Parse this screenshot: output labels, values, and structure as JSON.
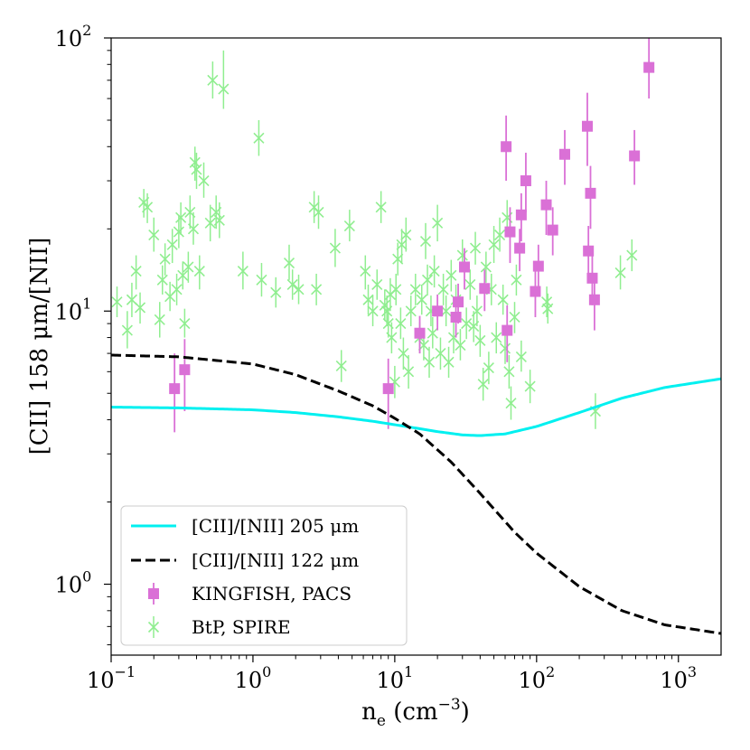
{
  "chart_data": {
    "type": "scatter",
    "xscale": "log",
    "yscale": "log",
    "xlim": [
      0.1,
      2000
    ],
    "ylim": [
      0.55,
      100
    ],
    "xlabel": {
      "base": "n",
      "sub": "e",
      "unit_open": " (cm",
      "sup": "−3",
      "unit_close": ")"
    },
    "ylabel": "[CII] 158 μm/[NII]",
    "xticks": [
      {
        "value": 0.1,
        "base": "10",
        "exp": "−1"
      },
      {
        "value": 1,
        "base": "10",
        "exp": "0"
      },
      {
        "value": 10,
        "base": "10",
        "exp": "1"
      },
      {
        "value": 100,
        "base": "10",
        "exp": "2"
      },
      {
        "value": 1000,
        "base": "10",
        "exp": "3"
      }
    ],
    "yticks": [
      {
        "value": 1,
        "base": "10",
        "exp": "0"
      },
      {
        "value": 10,
        "base": "10",
        "exp": "1"
      },
      {
        "value": 100,
        "base": "10",
        "exp": "2"
      }
    ],
    "legend_position": "lower-left",
    "series": [
      {
        "name": "[CII]/[NII] 205 μm",
        "kind": "line",
        "color": "#00f0f0",
        "dash": "solid",
        "points": [
          [
            0.1,
            4.45
          ],
          [
            0.3,
            4.42
          ],
          [
            1,
            4.35
          ],
          [
            2,
            4.25
          ],
          [
            4,
            4.1
          ],
          [
            7,
            3.95
          ],
          [
            12,
            3.78
          ],
          [
            20,
            3.62
          ],
          [
            30,
            3.52
          ],
          [
            40,
            3.5
          ],
          [
            60,
            3.55
          ],
          [
            100,
            3.78
          ],
          [
            200,
            4.25
          ],
          [
            400,
            4.8
          ],
          [
            800,
            5.25
          ],
          [
            2000,
            5.65
          ]
        ]
      },
      {
        "name": "[CII]/[NII] 122 μm",
        "kind": "line",
        "color": "#000000",
        "dash": "dashed",
        "points": [
          [
            0.1,
            6.9
          ],
          [
            0.3,
            6.8
          ],
          [
            1,
            6.4
          ],
          [
            2,
            5.85
          ],
          [
            4,
            5.1
          ],
          [
            7,
            4.5
          ],
          [
            10,
            4.05
          ],
          [
            15,
            3.55
          ],
          [
            25,
            2.8
          ],
          [
            40,
            2.15
          ],
          [
            70,
            1.55
          ],
          [
            100,
            1.3
          ],
          [
            200,
            0.98
          ],
          [
            400,
            0.8
          ],
          [
            800,
            0.71
          ],
          [
            2000,
            0.66
          ]
        ]
      },
      {
        "name": "KINGFISH, PACS",
        "kind": "errorbar-square",
        "color": "#da70d6",
        "points": [
          [
            0.28,
            5.2,
            3.6,
            7.0
          ],
          [
            0.33,
            6.1,
            4.3,
            7.9
          ],
          [
            9,
            5.2,
            3.7,
            6.7
          ],
          [
            15,
            8.3,
            7.0,
            9.6
          ],
          [
            20,
            10.0,
            8.5,
            11.5
          ],
          [
            27,
            9.5,
            8.0,
            11.0
          ],
          [
            28,
            10.8,
            9.0,
            12.6
          ],
          [
            31,
            14.5,
            12.0,
            17.0
          ],
          [
            43,
            12.1,
            10.0,
            14.2
          ],
          [
            62,
            8.5,
            6.5,
            10.5
          ],
          [
            61,
            40.0,
            30.0,
            52.0
          ],
          [
            65,
            19.5,
            15.0,
            24.0
          ],
          [
            76,
            17.0,
            14.0,
            20.0
          ],
          [
            78,
            22.5,
            18.0,
            27.0
          ],
          [
            84,
            30.0,
            23.0,
            38.0
          ],
          [
            98,
            11.8,
            9.5,
            14.0
          ],
          [
            103,
            14.6,
            12.0,
            17.5
          ],
          [
            117,
            24.5,
            19.0,
            30.0
          ],
          [
            130,
            19.8,
            16.0,
            24.0
          ],
          [
            158,
            37.5,
            29.0,
            46.0
          ],
          [
            228,
            47.5,
            34.0,
            63.0
          ],
          [
            232,
            16.6,
            13.0,
            20.5
          ],
          [
            240,
            27.0,
            20.0,
            34.0
          ],
          [
            247,
            13.2,
            10.5,
            16.0
          ],
          [
            256,
            11.0,
            8.5,
            13.5
          ],
          [
            490,
            37.0,
            29.0,
            46.0
          ],
          [
            620,
            78.0,
            60.0,
            100.0
          ]
        ]
      },
      {
        "name": "BtP, SPIRE",
        "kind": "errorbar-x",
        "color": "#90ee90",
        "points": [
          [
            0.11,
            10.8,
            9.5,
            12.3
          ],
          [
            0.13,
            8.5,
            7.3,
            10.0
          ],
          [
            0.14,
            11.0,
            9.5,
            12.7
          ],
          [
            0.15,
            14.0,
            12.0,
            16.0
          ],
          [
            0.16,
            10.3,
            9.0,
            11.7
          ],
          [
            0.17,
            25.0,
            22.0,
            28.0
          ],
          [
            0.18,
            24.0,
            21.0,
            27.0
          ],
          [
            0.2,
            19.0,
            16.5,
            22.0
          ],
          [
            0.22,
            9.3,
            8.0,
            10.8
          ],
          [
            0.23,
            13.0,
            11.5,
            14.7
          ],
          [
            0.24,
            15.5,
            13.5,
            17.7
          ],
          [
            0.26,
            11.3,
            10.0,
            12.8
          ],
          [
            0.27,
            17.5,
            15.0,
            20.0
          ],
          [
            0.29,
            12.0,
            10.5,
            13.7
          ],
          [
            0.3,
            19.5,
            17.0,
            22.5
          ],
          [
            0.31,
            22.0,
            19.0,
            25.0
          ],
          [
            0.32,
            13.5,
            12.0,
            15.2
          ],
          [
            0.33,
            9.0,
            8.0,
            10.2
          ],
          [
            0.35,
            14.5,
            12.7,
            16.5
          ],
          [
            0.36,
            23.0,
            20.0,
            26.5
          ],
          [
            0.38,
            20.0,
            17.5,
            23.0
          ],
          [
            0.39,
            35.0,
            30.0,
            40.0
          ],
          [
            0.4,
            33.0,
            28.0,
            38.0
          ],
          [
            0.42,
            14.0,
            12.0,
            16.0
          ],
          [
            0.45,
            30.0,
            26.0,
            35.0
          ],
          [
            0.5,
            21.0,
            18.0,
            24.5
          ],
          [
            0.52,
            70.0,
            60.0,
            82.0
          ],
          [
            0.55,
            23.0,
            20.0,
            26.5
          ],
          [
            0.58,
            21.5,
            18.5,
            25.0
          ],
          [
            0.62,
            65.0,
            55.0,
            90.0
          ],
          [
            0.85,
            14.0,
            12.0,
            16.5
          ],
          [
            1.1,
            43.0,
            37.0,
            50.0
          ],
          [
            1.15,
            13.0,
            11.3,
            15.0
          ],
          [
            1.45,
            11.7,
            10.3,
            13.3
          ],
          [
            1.8,
            15.0,
            13.0,
            17.5
          ],
          [
            1.9,
            12.5,
            11.0,
            14.2
          ],
          [
            2.1,
            12.0,
            10.6,
            13.6
          ],
          [
            2.7,
            24.0,
            21.0,
            27.5
          ],
          [
            2.9,
            23.0,
            20.0,
            26.5
          ],
          [
            2.8,
            12.0,
            10.5,
            13.7
          ],
          [
            3.8,
            17.0,
            14.5,
            20.0
          ],
          [
            4.2,
            6.3,
            5.5,
            7.2
          ],
          [
            4.8,
            20.5,
            18.0,
            23.5
          ],
          [
            6.2,
            14.0,
            12.0,
            16.0
          ],
          [
            6.5,
            11.0,
            9.7,
            12.5
          ],
          [
            7,
            10.0,
            8.8,
            11.4
          ],
          [
            7.5,
            12.5,
            11.0,
            14.2
          ],
          [
            8,
            24.0,
            21.0,
            27.5
          ],
          [
            8.5,
            10.5,
            9.2,
            12.0
          ],
          [
            8.8,
            10.0,
            8.8,
            11.4
          ],
          [
            9,
            9.0,
            8.0,
            10.2
          ],
          [
            9.3,
            11.5,
            10.0,
            13.2
          ],
          [
            9.5,
            8.0,
            7.0,
            9.1
          ],
          [
            10,
            5.5,
            4.8,
            6.3
          ],
          [
            10.2,
            12.0,
            10.5,
            13.7
          ],
          [
            10.5,
            15.5,
            13.5,
            17.8
          ],
          [
            11,
            9.0,
            7.9,
            10.3
          ],
          [
            11.2,
            17.5,
            15.0,
            20.0
          ],
          [
            11.5,
            7.0,
            6.1,
            8.0
          ],
          [
            12,
            19.0,
            16.5,
            22.0
          ],
          [
            12.5,
            6.0,
            5.2,
            6.9
          ],
          [
            13,
            10.0,
            8.8,
            11.4
          ],
          [
            14,
            12.0,
            10.5,
            13.7
          ],
          [
            15,
            8.0,
            7.0,
            9.1
          ],
          [
            15.5,
            11.0,
            9.7,
            12.5
          ],
          [
            16,
            7.5,
            6.6,
            8.6
          ],
          [
            16.5,
            18.0,
            15.5,
            21.0
          ],
          [
            17,
            13.0,
            11.4,
            14.8
          ],
          [
            17.5,
            6.5,
            5.7,
            7.4
          ],
          [
            18,
            10.0,
            8.8,
            11.4
          ],
          [
            18.5,
            8.3,
            7.3,
            9.5
          ],
          [
            19,
            14.0,
            12.2,
            16.0
          ],
          [
            20,
            21.0,
            18.0,
            24.5
          ],
          [
            21,
            7.0,
            6.1,
            8.0
          ],
          [
            22,
            12.0,
            10.5,
            13.7
          ],
          [
            23,
            10.0,
            8.8,
            11.4
          ],
          [
            24,
            6.5,
            5.7,
            7.4
          ],
          [
            25,
            13.5,
            11.8,
            15.4
          ],
          [
            26,
            8.0,
            7.0,
            9.1
          ],
          [
            27,
            11.0,
            9.7,
            12.5
          ],
          [
            29,
            7.5,
            6.6,
            8.6
          ],
          [
            30,
            16.0,
            14.0,
            18.3
          ],
          [
            32,
            9.0,
            7.9,
            10.3
          ],
          [
            34,
            12.5,
            11.0,
            14.2
          ],
          [
            36,
            8.8,
            7.7,
            10.0
          ],
          [
            37,
            17.0,
            14.8,
            19.5
          ],
          [
            38,
            10.0,
            8.8,
            11.4
          ],
          [
            40,
            7.8,
            6.8,
            8.9
          ],
          [
            42,
            5.4,
            4.7,
            6.2
          ],
          [
            44,
            14.5,
            12.7,
            16.5
          ],
          [
            46,
            6.2,
            5.4,
            7.1
          ],
          [
            48,
            12.0,
            10.5,
            13.7
          ],
          [
            50,
            17.5,
            15.0,
            20.5
          ],
          [
            52,
            8.0,
            7.0,
            9.1
          ],
          [
            55,
            19.0,
            16.5,
            22.0
          ],
          [
            58,
            11.0,
            9.7,
            12.5
          ],
          [
            60,
            7.3,
            6.4,
            8.3
          ],
          [
            62,
            22.0,
            19.0,
            25.5
          ],
          [
            64,
            6.0,
            5.2,
            6.9
          ],
          [
            66,
            4.6,
            4.0,
            5.3
          ],
          [
            70,
            9.5,
            8.3,
            10.8
          ],
          [
            72,
            13.0,
            11.4,
            14.8
          ],
          [
            78,
            6.8,
            6.0,
            7.8
          ],
          [
            90,
            5.3,
            4.6,
            6.1
          ],
          [
            118,
            10.8,
            9.5,
            12.3
          ],
          [
            120,
            10.2,
            9.0,
            11.6
          ],
          [
            260,
            4.3,
            3.7,
            5.0
          ],
          [
            390,
            13.8,
            12.0,
            16.0
          ],
          [
            470,
            16.0,
            14.0,
            18.3
          ]
        ]
      }
    ]
  }
}
